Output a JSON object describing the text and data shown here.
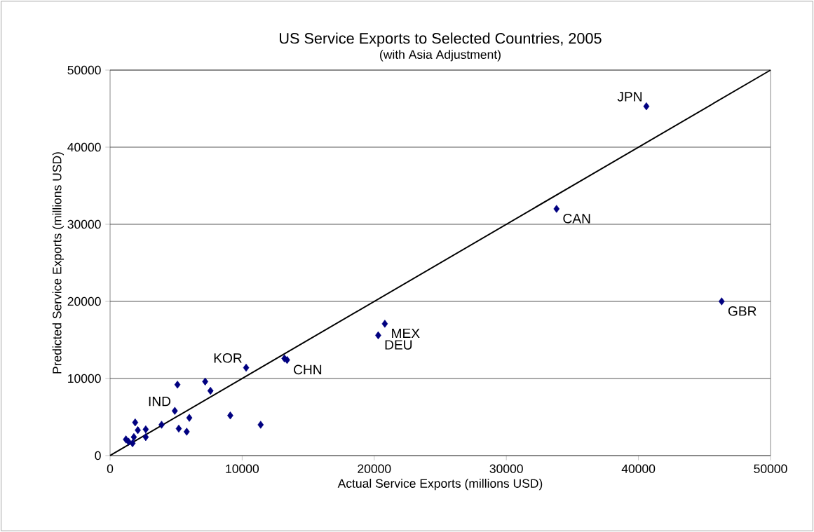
{
  "chart_data": {
    "type": "scatter",
    "title": "US Service Exports to Selected Countries, 2005",
    "subtitle": "(with Asia Adjustment)",
    "xlabel": "Actual Service Exports (millions USD)",
    "ylabel": "Predicted Service Exports (millions USD)",
    "series": [
      {
        "color": "#000080",
        "marker": "diamond",
        "x": [
          40600,
          33800,
          46300,
          20800,
          20300,
          13200,
          13400,
          10300,
          5100,
          7200,
          7600,
          4900,
          6000,
          9100,
          11400,
          3900,
          5200,
          5800,
          1900,
          2100,
          2700,
          2700,
          1800,
          1200,
          1400,
          1700
        ],
        "values": [
          45300,
          32000,
          20000,
          17100,
          15600,
          12600,
          12400,
          11400,
          9200,
          9600,
          8400,
          5800,
          4900,
          5200,
          4000,
          4000,
          3500,
          3100,
          4300,
          3300,
          3400,
          2400,
          2400,
          2100,
          1800,
          1600
        ]
      },
      {
        "type": "line",
        "color": "#000000",
        "marker": "none",
        "x": [
          0,
          50000
        ],
        "values": [
          0,
          50000
        ]
      }
    ],
    "annotations": [
      {
        "text": "JPN",
        "x": 40600,
        "y": 45300
      },
      {
        "text": "CAN",
        "x": 33800,
        "y": 32000
      },
      {
        "text": "GBR",
        "x": 46300,
        "y": 20000
      },
      {
        "text": "MEX",
        "x": 20800,
        "y": 17100
      },
      {
        "text": "DEU",
        "x": 20300,
        "y": 15600
      },
      {
        "text": "CHN",
        "x": 13400,
        "y": 12400
      },
      {
        "text": "KOR",
        "x": 10300,
        "y": 11400
      },
      {
        "text": "IND",
        "x": 4900,
        "y": 5800
      }
    ],
    "xlim": [
      0,
      50000
    ],
    "ylim": [
      0,
      50000
    ],
    "xticks": [
      0,
      10000,
      20000,
      30000,
      40000,
      50000
    ],
    "yticks": [
      0,
      10000,
      20000,
      30000,
      40000,
      50000
    ],
    "grid": "y"
  }
}
